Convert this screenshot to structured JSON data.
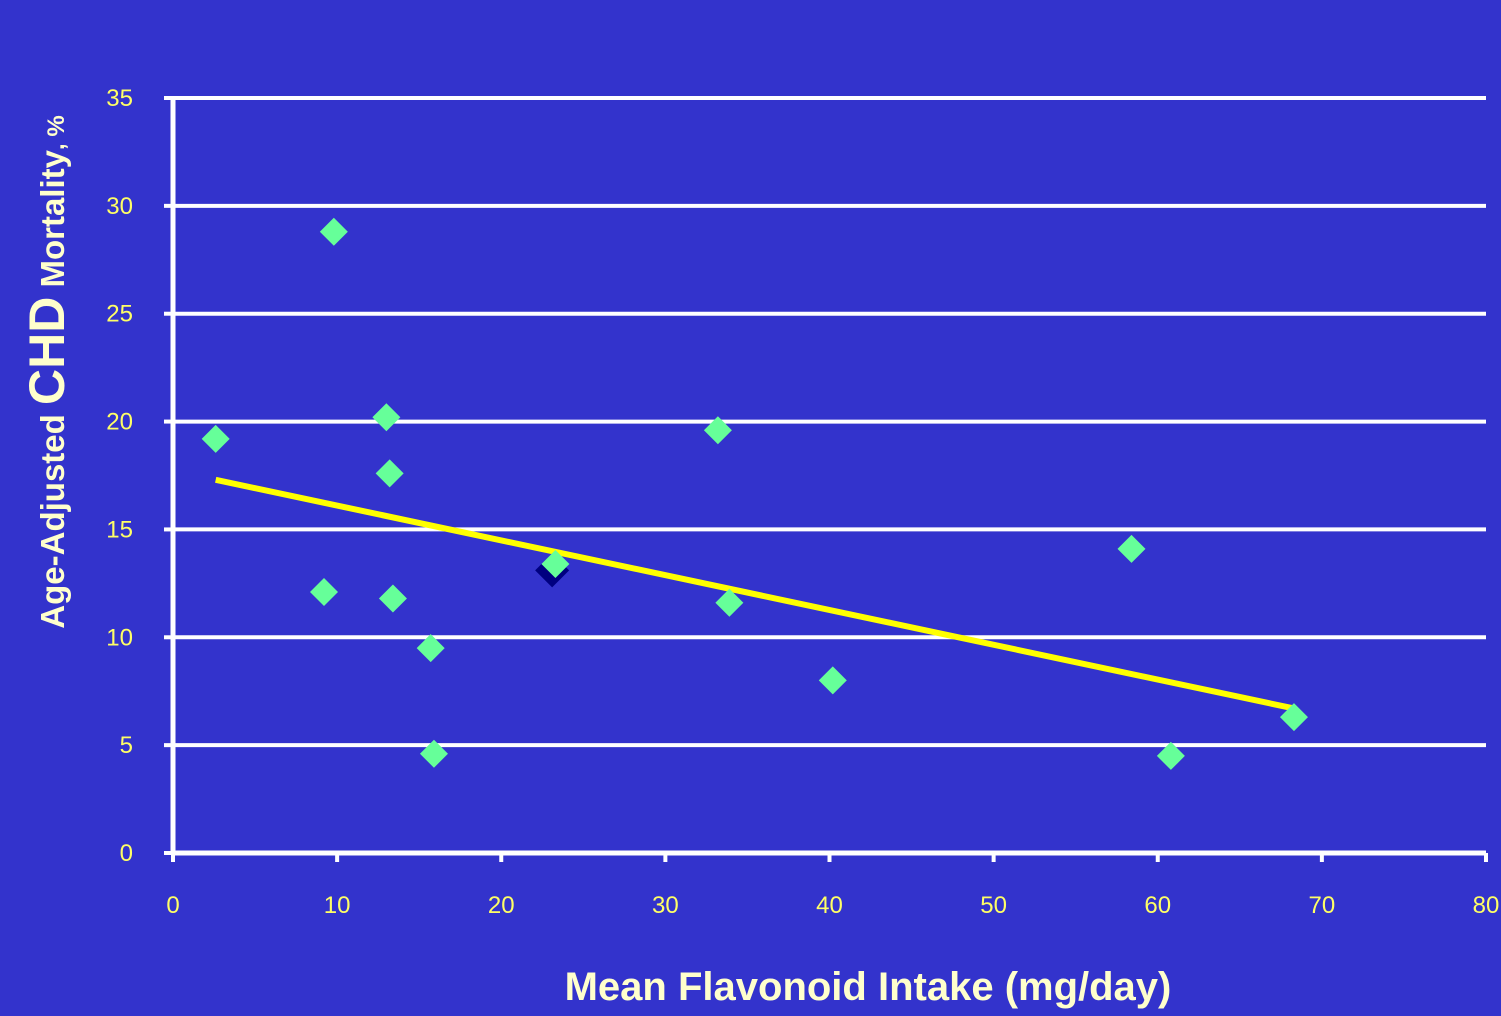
{
  "chart_data": {
    "type": "scatter",
    "title": "",
    "xlabel": "Mean Flavonoid Intake (mg/day)",
    "ylabel": {
      "prefix": "Age-Adjusted ",
      "emphasis": "CHD",
      "suffix": " Mortality",
      "unit": ", %"
    },
    "xlim": [
      0,
      80
    ],
    "ylim": [
      0,
      35
    ],
    "xticks": [
      0,
      10,
      20,
      30,
      40,
      50,
      60,
      70,
      80
    ],
    "yticks": [
      0,
      5,
      10,
      15,
      20,
      25,
      30,
      35
    ],
    "grid": "horizontal",
    "points": [
      {
        "x": 2.6,
        "y": 19.2
      },
      {
        "x": 9.8,
        "y": 28.8
      },
      {
        "x": 9.2,
        "y": 12.1
      },
      {
        "x": 13.0,
        "y": 20.2
      },
      {
        "x": 13.2,
        "y": 17.6
      },
      {
        "x": 13.4,
        "y": 11.8
      },
      {
        "x": 15.7,
        "y": 9.5
      },
      {
        "x": 15.9,
        "y": 4.6
      },
      {
        "x": 23.3,
        "y": 13.4
      },
      {
        "x": 33.2,
        "y": 19.6
      },
      {
        "x": 33.9,
        "y": 11.6
      },
      {
        "x": 40.2,
        "y": 8.0
      },
      {
        "x": 58.4,
        "y": 14.1
      },
      {
        "x": 60.8,
        "y": 4.5
      },
      {
        "x": 68.3,
        "y": 6.3
      }
    ],
    "highlight_point": {
      "x": 23.1,
      "y": 13.1
    },
    "trendline": {
      "x": [
        2.6,
        68.3
      ],
      "y": [
        17.3,
        6.7
      ]
    },
    "colors": {
      "background": "#3333CC",
      "grid": "#FFFFFF",
      "axis": "#FFFFFF",
      "point": "#66FF99",
      "highlight": "#000080",
      "trendline": "#FFFF00",
      "tick_label": "#FFFF66",
      "axis_title": "#FFFFCC"
    }
  }
}
